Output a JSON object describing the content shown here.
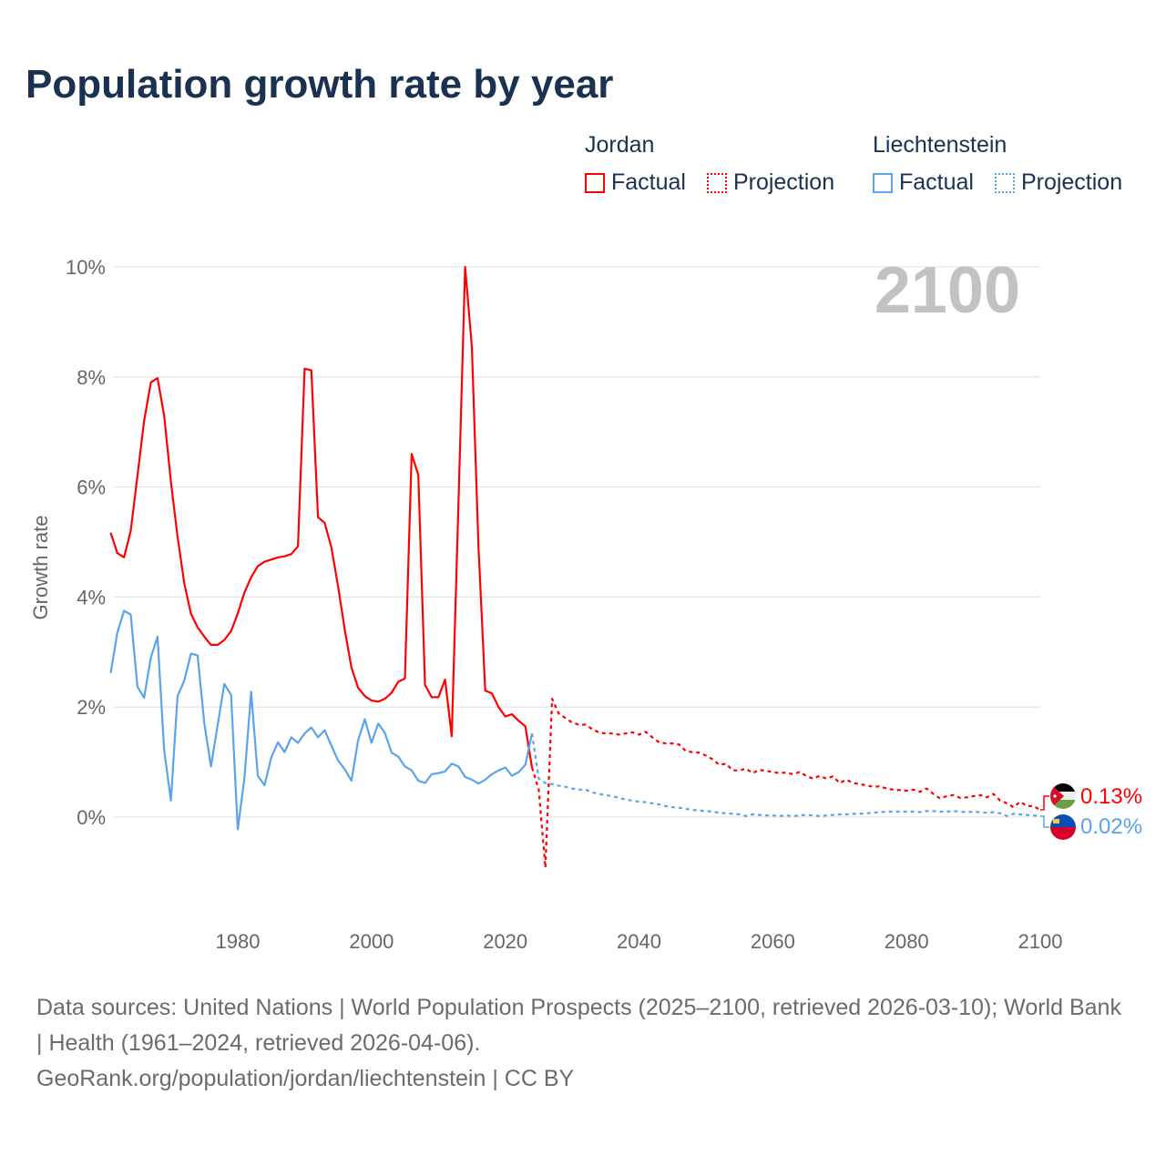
{
  "title": "Population growth rate by year",
  "legend": {
    "groups": [
      {
        "name": "Jordan",
        "color": "#ff0000",
        "items": [
          "Factual",
          "Projection"
        ]
      },
      {
        "name": "Liechtenstein",
        "color": "#5ba3ea",
        "items": [
          "Factual",
          "Projection"
        ]
      }
    ]
  },
  "year_display": "2100",
  "footer": {
    "sources": "Data sources: United Nations | World Population Prospects (2025–2100, retrieved 2026-03-10); World Bank | Health (1961–2024, retrieved 2026-04-06).",
    "credit": "GeoRank.org/population/jordan/liechtenstein | CC BY"
  },
  "chart_data": {
    "type": "line",
    "title": "Population growth rate by year",
    "xlabel": "",
    "ylabel": "Growth rate",
    "xlim": [
      1961,
      2100
    ],
    "ylim": [
      -1.5,
      10.5
    ],
    "x_ticks": [
      "1980",
      "2000",
      "2020",
      "2040",
      "2060",
      "2080",
      "2100"
    ],
    "y_ticks": [
      {
        "v": 0,
        "label": "0%"
      },
      {
        "v": 2,
        "label": "2%"
      },
      {
        "v": 4,
        "label": "4%"
      },
      {
        "v": 6,
        "label": "6%"
      },
      {
        "v": 8,
        "label": "8%"
      },
      {
        "v": 10,
        "label": "10%"
      }
    ],
    "grid": true,
    "series": [
      {
        "name": "Jordan Factual",
        "country": "Jordan",
        "kind": "factual",
        "color": "#ff0000",
        "start_year": 1961,
        "values": [
          5.17,
          4.8,
          4.72,
          5.2,
          6.2,
          7.2,
          7.9,
          7.98,
          7.3,
          6.1,
          5.1,
          4.25,
          3.7,
          3.45,
          3.28,
          3.13,
          3.13,
          3.22,
          3.38,
          3.7,
          4.08,
          4.36,
          4.56,
          4.64,
          4.68,
          4.72,
          4.74,
          4.78,
          4.92,
          8.15,
          8.12,
          5.45,
          5.35,
          4.9,
          4.2,
          3.4,
          2.72,
          2.35,
          2.2,
          2.12,
          2.1,
          2.15,
          2.26,
          2.46,
          2.52,
          6.6,
          6.22,
          2.4,
          2.18,
          2.18,
          2.5,
          1.47,
          5.7,
          10.0,
          8.55,
          4.9,
          2.3,
          2.25,
          2.0,
          1.83,
          1.87,
          1.75,
          1.65,
          0.9
        ]
      },
      {
        "name": "Jordan Projection",
        "country": "Jordan",
        "kind": "projection",
        "color": "#ff0000",
        "start_year": 2024,
        "values": [
          0.9,
          0.5,
          -0.92,
          2.15,
          1.88,
          1.8,
          1.72,
          1.68,
          1.68,
          1.6,
          1.54,
          1.52,
          1.52,
          1.5,
          1.52,
          1.54,
          1.5,
          1.55,
          1.45,
          1.36,
          1.34,
          1.34,
          1.32,
          1.2,
          1.18,
          1.17,
          1.12,
          1.05,
          0.95,
          0.97,
          0.85,
          0.85,
          0.88,
          0.8,
          0.86,
          0.84,
          0.82,
          0.8,
          0.81,
          0.78,
          0.82,
          0.75,
          0.7,
          0.75,
          0.7,
          0.74,
          0.62,
          0.68,
          0.62,
          0.6,
          0.58,
          0.55,
          0.56,
          0.52,
          0.5,
          0.49,
          0.48,
          0.5,
          0.46,
          0.52,
          0.42,
          0.34,
          0.38,
          0.4,
          0.35,
          0.36,
          0.38,
          0.4,
          0.36,
          0.42,
          0.3,
          0.25,
          0.18,
          0.28,
          0.2,
          0.2,
          0.13
        ]
      },
      {
        "name": "Liechtenstein Factual",
        "country": "Liechtenstein",
        "kind": "factual",
        "color": "#5ba3ea",
        "start_year": 1961,
        "values": [
          2.62,
          3.35,
          3.75,
          3.68,
          2.37,
          2.17,
          2.9,
          3.28,
          1.22,
          0.3,
          2.2,
          2.48,
          2.97,
          2.94,
          1.7,
          0.92,
          1.68,
          2.42,
          2.22,
          -0.22,
          0.7,
          2.28,
          0.75,
          0.58,
          1.08,
          1.36,
          1.18,
          1.45,
          1.35,
          1.52,
          1.63,
          1.45,
          1.58,
          1.3,
          1.03,
          0.87,
          0.66,
          1.4,
          1.78,
          1.35,
          1.7,
          1.53,
          1.17,
          1.1,
          0.92,
          0.85,
          0.66,
          0.62,
          0.78,
          0.8,
          0.83,
          0.97,
          0.92,
          0.73,
          0.68,
          0.61,
          0.68,
          0.78,
          0.85,
          0.9,
          0.75,
          0.82,
          0.95,
          1.52
        ]
      },
      {
        "name": "Liechtenstein Projection",
        "country": "Liechtenstein",
        "kind": "projection",
        "color": "#5ba3ea",
        "start_year": 2024,
        "values": [
          1.52,
          0.7,
          0.62,
          0.6,
          0.57,
          0.55,
          0.52,
          0.5,
          0.5,
          0.45,
          0.42,
          0.4,
          0.38,
          0.35,
          0.32,
          0.3,
          0.28,
          0.27,
          0.25,
          0.23,
          0.2,
          0.18,
          0.17,
          0.15,
          0.13,
          0.12,
          0.11,
          0.1,
          0.08,
          0.07,
          0.06,
          0.05,
          0.02,
          0.05,
          0.04,
          0.03,
          0.03,
          0.02,
          0.03,
          0.02,
          0.03,
          0.04,
          0.03,
          0.02,
          0.03,
          0.04,
          0.05,
          0.05,
          0.06,
          0.06,
          0.07,
          0.08,
          0.09,
          0.1,
          0.1,
          0.1,
          0.1,
          0.1,
          0.09,
          0.11,
          0.11,
          0.1,
          0.1,
          0.11,
          0.1,
          0.09,
          0.1,
          0.09,
          0.08,
          0.09,
          0.07,
          0.02,
          0.06,
          0.05,
          0.04,
          0.03,
          0.02
        ]
      }
    ],
    "end_labels": [
      {
        "country": "Jordan",
        "label": "0.13%",
        "color": "#ff0000"
      },
      {
        "country": "Liechtenstein",
        "label": "0.02%",
        "color": "#5ba3ea"
      }
    ]
  }
}
